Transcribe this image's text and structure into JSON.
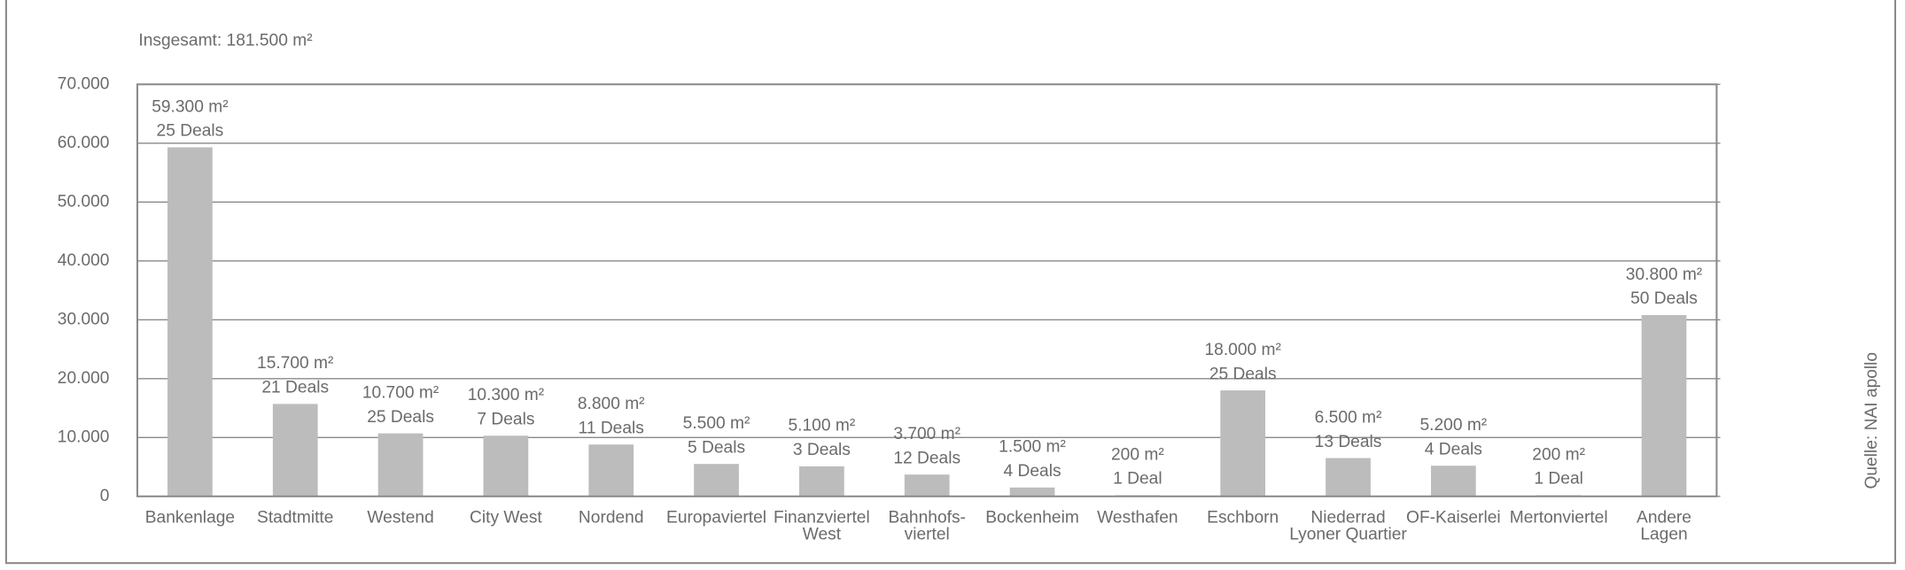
{
  "chart_data": {
    "type": "bar",
    "subtitle": "Insgesamt: 181.500 m²",
    "source": "Quelle: NAI apollo",
    "categories": [
      "Bankenlage",
      "Stadtmitte",
      "Westend",
      "City West",
      "Nordend",
      "Europaviertel",
      "Finanzviertel\nWest",
      "Bahnhofs-\nviertel",
      "Bockenheim",
      "Westhafen",
      "Eschborn",
      "Niederrad\nLyoner Quartier",
      "OF-Kaiserlei",
      "Mertonviertel",
      "Andere\nLagen"
    ],
    "values": [
      59300,
      15700,
      10700,
      10300,
      8800,
      5500,
      5100,
      3700,
      1500,
      200,
      18000,
      6500,
      5200,
      200,
      30800
    ],
    "value_labels": [
      "59.300 m²",
      "15.700 m²",
      "10.700 m²",
      "10.300 m²",
      "8.800 m²",
      "5.500 m²",
      "5.100 m²",
      "3.700 m²",
      "1.500 m²",
      "200 m²",
      "18.000 m²",
      "6.500 m²",
      "5.200 m²",
      "200 m²",
      "30.800 m²"
    ],
    "deal_labels": [
      "25 Deals",
      "21 Deals",
      "25 Deals",
      "7 Deals",
      "11 Deals",
      "5 Deals",
      "3 Deals",
      "12 Deals",
      "4 Deals",
      "1 Deal",
      "25 Deals",
      "13 Deals",
      "4 Deals",
      "1 Deal",
      "50 Deals"
    ],
    "color": "#bcbcbc",
    "ylim": [
      0,
      70000
    ],
    "yticks": [
      0,
      {
        "value": 10000,
        "label": "10.000"
      },
      {
        "value": 20000,
        "label": "20.000"
      },
      {
        "value": 30000,
        "label": "30.000"
      },
      {
        "value": 40000,
        "label": "40.000"
      },
      {
        "value": 50000,
        "label": "50.000"
      },
      {
        "value": 60000,
        "label": "60.000"
      },
      {
        "value": 70000,
        "label": "70.000"
      }
    ],
    "grid": true
  }
}
